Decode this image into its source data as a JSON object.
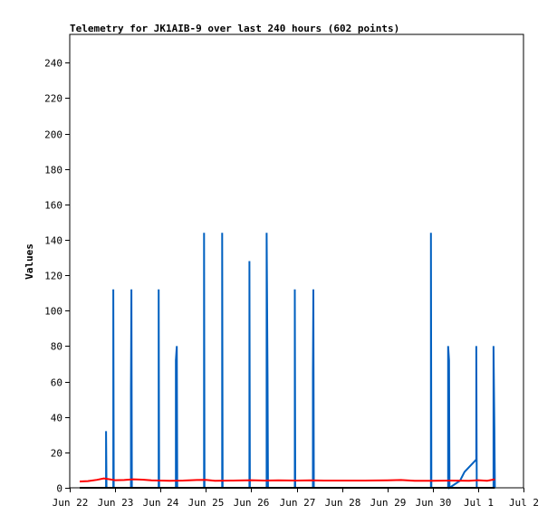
{
  "chart_data": {
    "type": "line",
    "title": "Telemetry for JK1AIB-9 over last 240 hours (602 points)",
    "ylabel": "Values",
    "xlabel": "",
    "ylim": [
      0,
      256
    ],
    "yticks": [
      0,
      20,
      40,
      60,
      80,
      100,
      120,
      140,
      160,
      180,
      200,
      220,
      240
    ],
    "x_axis": {
      "unit": "days since Jun 22",
      "range": [
        0,
        10
      ],
      "ticks": [
        {
          "x": 0,
          "label": "Jun 22"
        },
        {
          "x": 1,
          "label": "Jun 23"
        },
        {
          "x": 2,
          "label": "Jun 24"
        },
        {
          "x": 3,
          "label": "Jun 25"
        },
        {
          "x": 4,
          "label": "Jun 26"
        },
        {
          "x": 5,
          "label": "Jun 27"
        },
        {
          "x": 6,
          "label": "Jun 28"
        },
        {
          "x": 7,
          "label": "Jun 29"
        },
        {
          "x": 8,
          "label": "Jun 30"
        },
        {
          "x": 9,
          "label": "Jul 1"
        },
        {
          "x": 10,
          "label": "Jul 2"
        }
      ]
    },
    "series": [
      {
        "color": "#0060c0",
        "points": [
          [
            0.22,
            0
          ],
          [
            0.8,
            0
          ],
          [
            0.8,
            32
          ],
          [
            0.81,
            0
          ],
          [
            0.96,
            0
          ],
          [
            0.96,
            112
          ],
          [
            0.97,
            0
          ],
          [
            1.35,
            0
          ],
          [
            1.35,
            56
          ],
          [
            1.36,
            112
          ],
          [
            1.37,
            0
          ],
          [
            1.96,
            0
          ],
          [
            1.96,
            112
          ],
          [
            1.97,
            0
          ],
          [
            2.34,
            0
          ],
          [
            2.34,
            72
          ],
          [
            2.36,
            80
          ],
          [
            2.37,
            0
          ],
          [
            2.96,
            0
          ],
          [
            2.96,
            144
          ],
          [
            2.97,
            0
          ],
          [
            3.36,
            0
          ],
          [
            3.36,
            144
          ],
          [
            3.37,
            0
          ],
          [
            3.96,
            0
          ],
          [
            3.96,
            128
          ],
          [
            3.97,
            0
          ],
          [
            4.34,
            0
          ],
          [
            4.34,
            144
          ],
          [
            4.36,
            64
          ],
          [
            4.37,
            0
          ],
          [
            4.96,
            0
          ],
          [
            4.96,
            112
          ],
          [
            4.97,
            0
          ],
          [
            5.36,
            0
          ],
          [
            5.36,
            64
          ],
          [
            5.37,
            112
          ],
          [
            5.38,
            0
          ],
          [
            7.96,
            0
          ],
          [
            7.96,
            144
          ],
          [
            7.97,
            0
          ],
          [
            8.34,
            0
          ],
          [
            8.34,
            80
          ],
          [
            8.36,
            72
          ],
          [
            8.37,
            0
          ],
          [
            8.6,
            4
          ],
          [
            8.7,
            9
          ],
          [
            8.96,
            16
          ],
          [
            8.96,
            80
          ],
          [
            8.97,
            0
          ],
          [
            9.34,
            0
          ],
          [
            9.34,
            80
          ],
          [
            9.36,
            32
          ],
          [
            9.37,
            0
          ]
        ]
      },
      {
        "color": "#ff0000",
        "points": [
          [
            0.22,
            3.6
          ],
          [
            0.4,
            3.8
          ],
          [
            0.6,
            4.5
          ],
          [
            0.75,
            5.3
          ],
          [
            0.85,
            4.9
          ],
          [
            1.0,
            4.3
          ],
          [
            1.2,
            4.4
          ],
          [
            1.4,
            4.8
          ],
          [
            1.6,
            4.6
          ],
          [
            1.8,
            4.2
          ],
          [
            2.0,
            4.1
          ],
          [
            2.2,
            4.0
          ],
          [
            2.5,
            4.1
          ],
          [
            2.8,
            4.4
          ],
          [
            3.0,
            4.5
          ],
          [
            3.2,
            4.0
          ],
          [
            3.6,
            4.1
          ],
          [
            4.0,
            4.3
          ],
          [
            4.3,
            4.1
          ],
          [
            4.6,
            4.2
          ],
          [
            5.0,
            4.1
          ],
          [
            5.3,
            4.2
          ],
          [
            5.6,
            4.1
          ],
          [
            6.0,
            4.1
          ],
          [
            6.5,
            4.1
          ],
          [
            7.0,
            4.2
          ],
          [
            7.3,
            4.4
          ],
          [
            7.6,
            4.0
          ],
          [
            8.0,
            4.0
          ],
          [
            8.4,
            4.1
          ],
          [
            8.8,
            4.0
          ],
          [
            9.0,
            4.3
          ],
          [
            9.2,
            4.0
          ],
          [
            9.37,
            4.8
          ]
        ]
      },
      {
        "color": "#000000",
        "points": [
          [
            0.22,
            0
          ],
          [
            9.37,
            0
          ]
        ]
      }
    ]
  }
}
